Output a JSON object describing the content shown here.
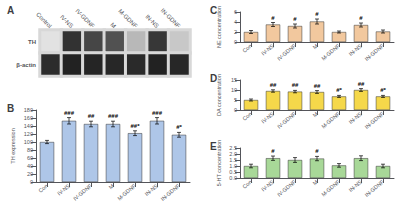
{
  "chart_data": [
    {
      "type": "heatmap",
      "title": "A",
      "categories": [
        "Control",
        "IV-NS",
        "IV-GDNF",
        "M",
        "M-GDNF",
        "IN-NS",
        "IN-GDNF"
      ],
      "rows": [
        "TH",
        "β-actin"
      ],
      "cells": [
        [
          0.12,
          0.8,
          0.72,
          0.68,
          0.28,
          0.78,
          0.22
        ],
        [
          0.82,
          0.86,
          0.85,
          0.84,
          0.83,
          0.86,
          0.84
        ]
      ]
    },
    {
      "type": "bar",
      "title": "B",
      "ylabel": "TH expression",
      "categories": [
        "Con",
        "IV-NS",
        "IV-GDNF",
        "M",
        "M-GDNF",
        "IN-NS",
        "IN-GDNF"
      ],
      "values": [
        100,
        153,
        145,
        145,
        122,
        153,
        118
      ],
      "errors": [
        4,
        8,
        7,
        7,
        6,
        8,
        6
      ],
      "annotations": [
        null,
        "###",
        "##",
        "###",
        "##*",
        "###",
        "#*"
      ],
      "color": "#aec6e8",
      "ylim": [
        0,
        180
      ],
      "yticks": [
        0,
        20,
        40,
        60,
        80,
        100,
        120,
        140,
        160,
        180
      ],
      "grid": false
    },
    {
      "type": "bar",
      "title": "C",
      "ylabel": "NE concentration",
      "categories": [
        "Con",
        "IV-NS",
        "IV-GDNF",
        "M",
        "M-GDNF",
        "IN-NS",
        "IN-GDNF"
      ],
      "values": [
        2.0,
        3.5,
        3.2,
        4.1,
        2.0,
        3.4,
        2.1
      ],
      "errors": [
        0.3,
        0.4,
        0.4,
        0.5,
        0.2,
        0.4,
        0.3
      ],
      "annotations": [
        null,
        "#",
        "#",
        "#",
        null,
        "#",
        null
      ],
      "color": "#f2c89e",
      "ylim": [
        0,
        6
      ],
      "yticks": [
        0,
        2,
        4,
        6
      ],
      "grid": false
    },
    {
      "type": "bar",
      "title": "D",
      "ylabel": "DA concentration",
      "categories": [
        "Con",
        "IV-NS",
        "IV-GDNF",
        "M",
        "M-GDNF",
        "IN-NS",
        "IN-GDNF"
      ],
      "values": [
        5.0,
        9.5,
        9.2,
        9.0,
        6.8,
        10.0,
        6.8
      ],
      "errors": [
        0.5,
        0.6,
        0.6,
        0.7,
        0.5,
        0.7,
        0.5
      ],
      "annotations": [
        null,
        "##",
        "##",
        "##",
        "#*",
        "##",
        "#*"
      ],
      "color": "#f5d84a",
      "ylim": [
        0,
        15
      ],
      "yticks": [
        0,
        5,
        10,
        15
      ],
      "grid": false
    },
    {
      "type": "bar",
      "title": "E",
      "ylabel": "5-HT concentration",
      "categories": [
        "Con",
        "IV-NS",
        "IV-GDNF",
        "M",
        "M-GDNF",
        "IN-NS",
        "IN-GDNF"
      ],
      "values": [
        1.0,
        1.65,
        1.5,
        1.62,
        1.05,
        1.65,
        1.0
      ],
      "errors": [
        0.15,
        0.18,
        0.2,
        0.18,
        0.15,
        0.2,
        0.15
      ],
      "annotations": [
        null,
        "#",
        null,
        "#",
        null,
        null,
        null
      ],
      "color": "#a8d898",
      "ylim": [
        0,
        2.5
      ],
      "yticks": [
        {
          "value": 0,
          "label": "0.0"
        },
        0.5,
        {
          "value": 1,
          "label": "1.0"
        },
        1.5,
        {
          "value": 2,
          "label": "2.0"
        },
        2.5
      ],
      "grid": false
    }
  ]
}
